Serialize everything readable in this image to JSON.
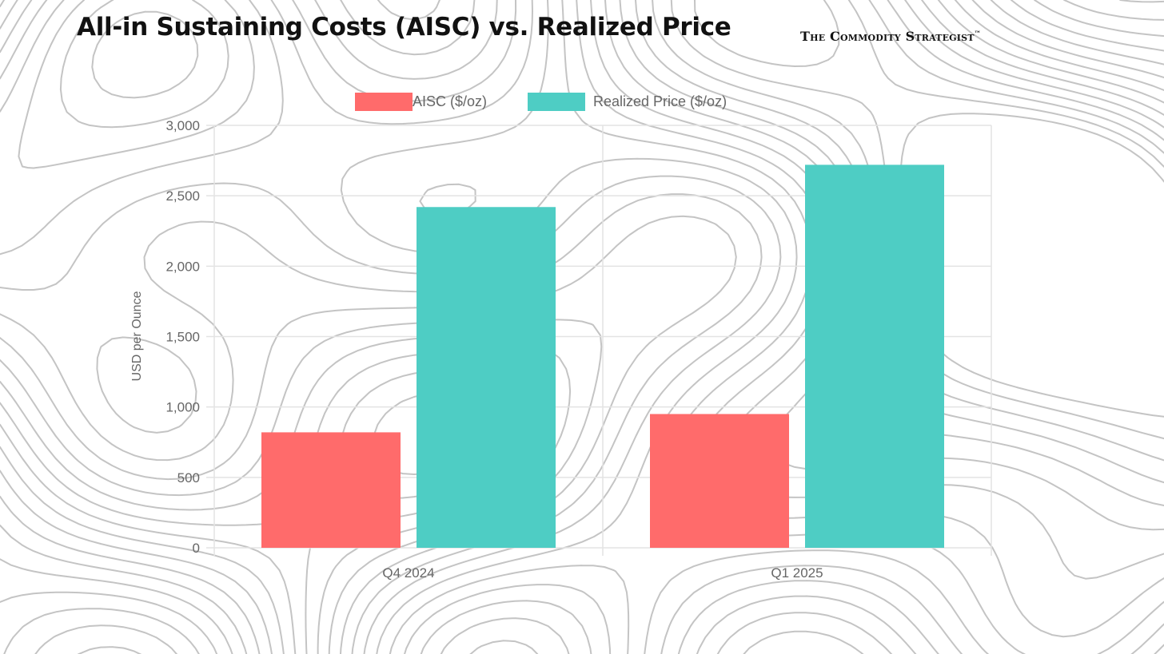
{
  "brand": {
    "name": "The Commodity Strategist",
    "trademark": "™"
  },
  "colors": {
    "aisc": "#ff6b6b",
    "realized": "#4ecdc4",
    "grid": "#e3e3e3",
    "text": "#666666"
  },
  "chart_data": {
    "type": "bar",
    "title": "All-in Sustaining Costs (AISC) vs. Realized Price",
    "ylabel": "USD per Ounce",
    "xlabel": "",
    "categories": [
      "Q4 2024",
      "Q1 2025"
    ],
    "series": [
      {
        "name": "AISC ($/oz)",
        "values": [
          820,
          950
        ],
        "color": "#ff6b6b"
      },
      {
        "name": "Realized Price ($/oz)",
        "values": [
          2420,
          2720
        ],
        "color": "#4ecdc4"
      }
    ],
    "ylim": [
      0,
      3000
    ],
    "yticks": [
      0,
      500,
      1000,
      1500,
      2000,
      2500,
      3000
    ],
    "ytick_labels": [
      "0",
      "500",
      "1,000",
      "1,500",
      "2,000",
      "2,500",
      "3,000"
    ],
    "grid": true,
    "legend": "top-center"
  }
}
